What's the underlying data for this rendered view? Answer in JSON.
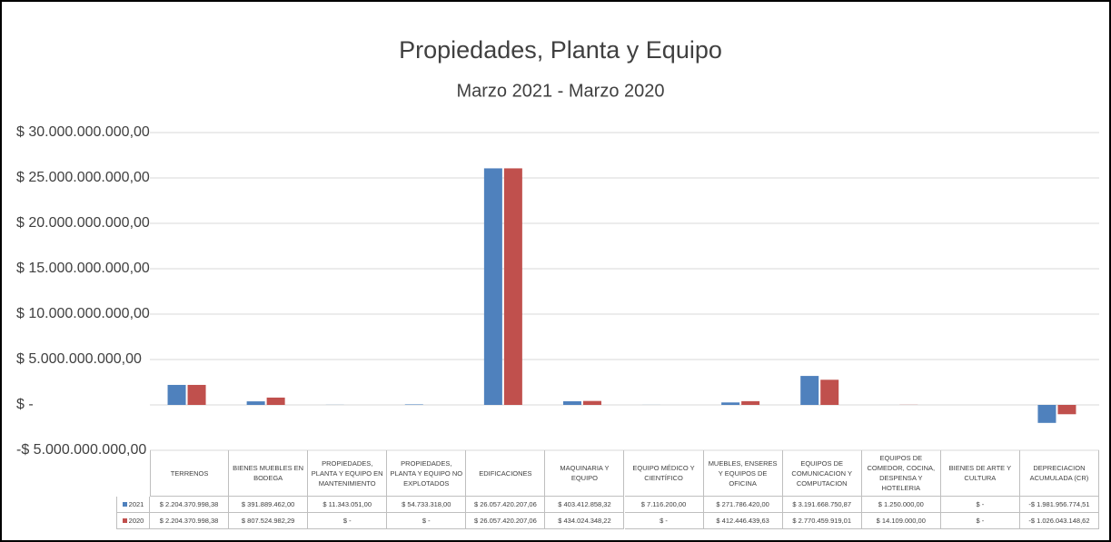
{
  "chart_data": {
    "type": "bar",
    "title": "Propiedades, Planta y Equipo",
    "subtitle": "Marzo 2021 - Marzo 2020",
    "categories": [
      "TERRENOS",
      "BIENES MUEBLES EN BODEGA",
      "PROPIEDADES, PLANTA Y EQUIPO EN MANTENIMIENTO",
      "PROPIEDADES, PLANTA Y EQUIPO NO EXPLOTADOS",
      "EDIFICACIONES",
      "MAQUINARIA Y EQUIPO",
      "EQUIPO MÉDICO Y CIENTÍFICO",
      "MUEBLES, ENSERES Y EQUIPOS DE OFICINA",
      "EQUIPOS DE COMUNICACION Y COMPUTACION",
      "EQUIPOS DE COMEDOR, COCINA, DESPENSA Y HOTELERIA",
      "BIENES DE ARTE Y CULTURA",
      "DEPRECIACION ACUMULADA (CR)"
    ],
    "series": [
      {
        "name": "2021",
        "color": "#4f81bd",
        "values": [
          2204370998.38,
          391889462.0,
          11343051.0,
          54733318.0,
          26057420207.06,
          403412858.32,
          7116200.0,
          271786420.0,
          3191668750.87,
          1250000.0,
          0,
          -1981956774.51
        ],
        "value_labels": [
          "$ 2.204.370.998,38",
          "$ 391.889.462,00",
          "$ 11.343.051,00",
          "$ 54.733.318,00",
          "$ 26.057.420.207,06",
          "$ 403.412.858,32",
          "$ 7.116.200,00",
          "$ 271.786.420,00",
          "$ 3.191.668.750,87",
          "$ 1.250.000,00",
          "$ -",
          "-$ 1.981.956.774,51"
        ]
      },
      {
        "name": "2020",
        "color": "#c0504d",
        "values": [
          2204370998.38,
          807524982.29,
          0,
          0,
          26057420207.06,
          434024348.22,
          0,
          412446439.63,
          2770459919.01,
          14109000.0,
          0,
          -1026043148.62
        ],
        "value_labels": [
          "$ 2.204.370.998,38",
          "$ 807.524.982,29",
          "$ -",
          "$ -",
          "$ 26.057.420.207,06",
          "$ 434.024.348,22",
          "$ -",
          "$ 412.446.439,63",
          "$ 2.770.459.919,01",
          "$ 14.109.000,00",
          "$ -",
          "-$ 1.026.043.148,62"
        ]
      }
    ],
    "ylim": [
      -5000000000,
      30000000000
    ],
    "yticks": [
      {
        "value": -5000000000,
        "label": "-$ 5.000.000.000,00"
      },
      {
        "value": 0,
        "label": "$ -"
      },
      {
        "value": 5000000000,
        "label": "$ 5.000.000.000,00"
      },
      {
        "value": 10000000000,
        "label": "$ 10.000.000.000,00"
      },
      {
        "value": 15000000000,
        "label": "$ 15.000.000.000,00"
      },
      {
        "value": 20000000000,
        "label": "$ 20.000.000.000,00"
      },
      {
        "value": 25000000000,
        "label": "$ 25.000.000.000,00"
      },
      {
        "value": 30000000000,
        "label": "$ 30.000.000.000,00"
      }
    ],
    "grid": true
  }
}
